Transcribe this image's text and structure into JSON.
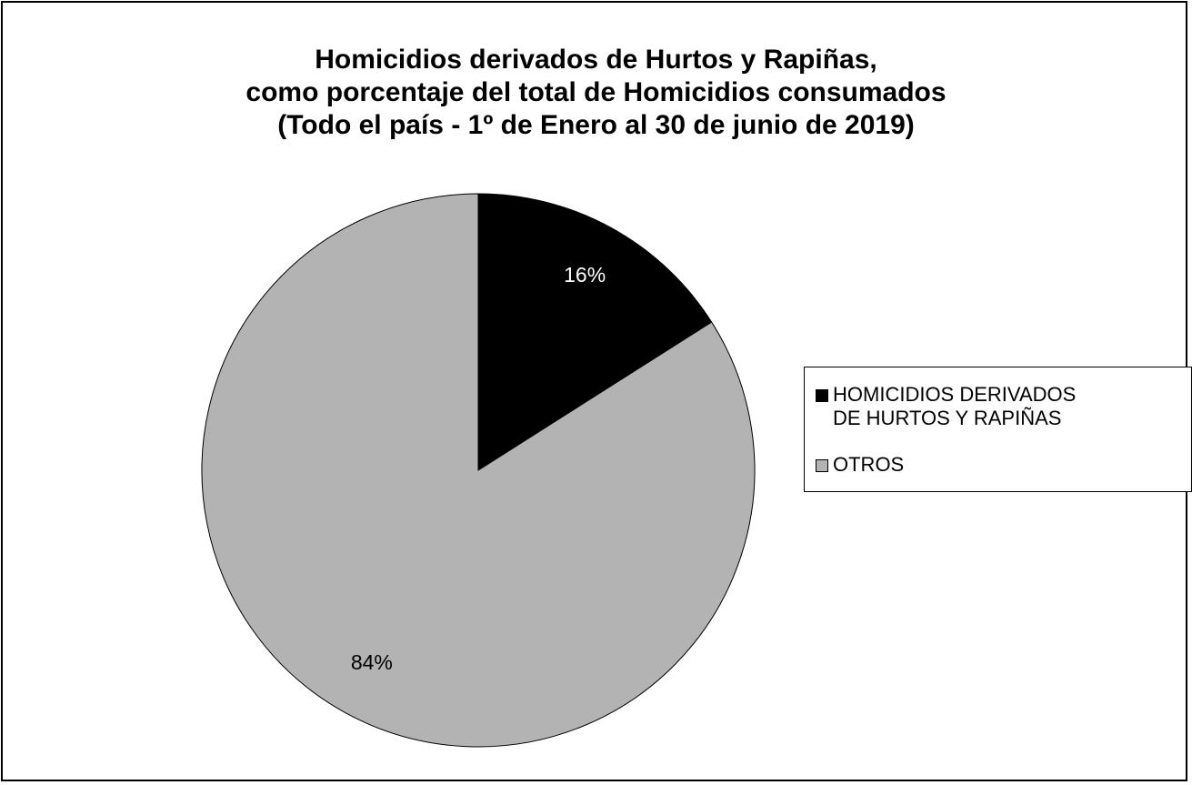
{
  "chart_data": {
    "type": "pie",
    "title_lines": [
      "Homicidios derivados de Hurtos y Rapiñas,",
      "como porcentaje del total de Homicidios consumados",
      "(Todo el país - 1º de Enero al 30 de junio de 2019)"
    ],
    "slices": [
      {
        "label": "HOMICIDIOS DERIVADOS DE HURTOS Y RAPIÑAS",
        "value": 16,
        "data_label": "16%",
        "color": "#000000",
        "label_color": "#ffffff"
      },
      {
        "label": "OTROS",
        "value": 84,
        "data_label": "84%",
        "color": "#b3b3b3",
        "label_color": "#000000"
      }
    ],
    "legend_position": "right",
    "legend": [
      {
        "label": "HOMICIDIOS DERIVADOS\nDE HURTOS Y RAPIÑAS",
        "color": "#000000"
      },
      {
        "label": "OTROS",
        "color": "#b3b3b3"
      }
    ]
  }
}
